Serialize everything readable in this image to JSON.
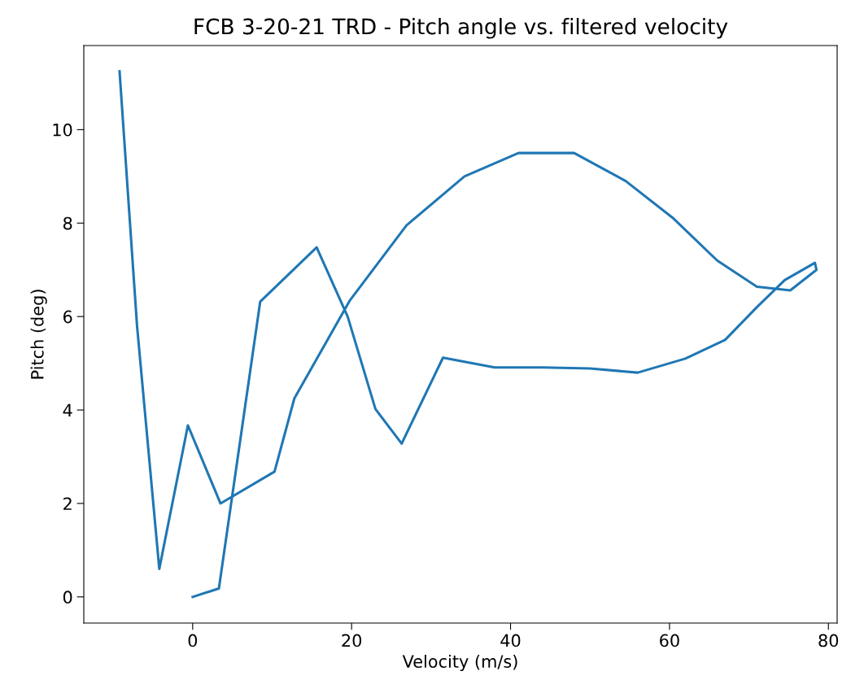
{
  "chart_data": {
    "type": "line",
    "title": "FCB 3-20-21 TRD - Pitch angle vs. filtered velocity",
    "xlabel": "Velocity (m/s)",
    "ylabel": "Pitch (deg)",
    "x": [
      0,
      3.3,
      8.5,
      15.6,
      19.5,
      23,
      26.3,
      31.5,
      38,
      44,
      50,
      56,
      62,
      67,
      71,
      74.5,
      78.3,
      78.5,
      75.2,
      71,
      66,
      60.5,
      54.5,
      48,
      41,
      34.2,
      26.9,
      19.8,
      12.8,
      10.3,
      3.5,
      -0.6,
      -4.2,
      -7,
      -9.2
    ],
    "series": [
      {
        "color": "#1f77b4",
        "values": [
          0,
          0.18,
          6.32,
          7.48,
          6.0,
          4.02,
          3.28,
          5.12,
          4.91,
          4.91,
          4.89,
          4.8,
          5.1,
          5.5,
          6.2,
          6.78,
          7.15,
          7.0,
          6.56,
          6.64,
          7.2,
          8.1,
          8.9,
          9.5,
          9.5,
          9.0,
          7.95,
          6.35,
          4.25,
          2.68,
          2.0,
          3.67,
          0.6,
          5.8,
          11.25
        ]
      }
    ],
    "xlim": [
      -13.7,
      81.1
    ],
    "ylim": [
      -0.56,
      11.8
    ],
    "xticks": [
      0,
      20,
      40,
      60,
      80
    ],
    "yticks": [
      0,
      2,
      4,
      6,
      8,
      10
    ],
    "grid": false,
    "legend": false
  }
}
